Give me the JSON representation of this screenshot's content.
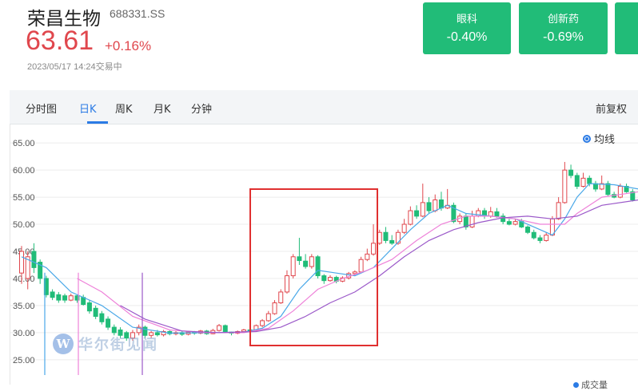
{
  "stock": {
    "name": "荣昌生物",
    "code": "688331.SS",
    "price": "63.61",
    "change_pct": "+0.16%",
    "timestamp": "2023/05/17 14:24交易中"
  },
  "sectors": [
    {
      "name": "眼科",
      "change": "-0.40%"
    },
    {
      "name": "创新药",
      "change": "-0.69%"
    }
  ],
  "tabs": [
    "分时图",
    "日K",
    "周K",
    "月K",
    "分钟"
  ],
  "active_tab": "日K",
  "adjust_label": "前复权",
  "legend_label": "均线",
  "watermark": "华尔街见闻",
  "volume_label": "成交量",
  "colors": {
    "up": "#e0474d",
    "down": "#21bc78",
    "ma5": "#4aa8e8",
    "ma10": "#ee82d9",
    "ma20": "#9b59c9",
    "highlight": "#e03030"
  },
  "chart_data": {
    "type": "candlestick",
    "y_ticks": [
      "65.00",
      "60.00",
      "55.00",
      "50.00",
      "45.00",
      "40.00",
      "35.00",
      "30.00",
      "25.00"
    ],
    "ylim": [
      23.5,
      66.5
    ],
    "candles": [
      [
        41,
        45,
        39,
        46
      ],
      [
        40,
        44,
        38,
        45
      ],
      [
        45,
        42,
        41,
        46.5
      ],
      [
        43,
        40,
        39,
        43.5
      ],
      [
        40,
        37,
        36.5,
        40.5
      ],
      [
        37.5,
        36.5,
        36,
        38
      ],
      [
        37,
        36,
        35.5,
        37.5
      ],
      [
        36.8,
        36,
        35.5,
        37.2
      ],
      [
        36,
        36.8,
        35.8,
        37.2
      ],
      [
        36.8,
        36,
        35.5,
        37
      ],
      [
        36.5,
        35.2,
        35,
        37
      ],
      [
        35.5,
        34,
        33.5,
        36
      ],
      [
        34.5,
        33,
        32.5,
        35
      ],
      [
        33.5,
        32,
        31.5,
        34
      ],
      [
        32.5,
        31,
        30.5,
        33
      ],
      [
        31,
        30,
        29.5,
        31.5
      ],
      [
        30.5,
        29.5,
        29,
        31
      ],
      [
        30,
        29,
        28.5,
        30.3
      ],
      [
        29,
        30,
        28.5,
        30.5
      ],
      [
        30,
        31,
        29.5,
        31.5
      ],
      [
        31,
        29.5,
        29,
        31.3
      ],
      [
        29.5,
        30,
        29,
        30.3
      ],
      [
        30,
        29.6,
        29.3,
        30.5
      ],
      [
        29.6,
        30.2,
        29.3,
        30.5
      ],
      [
        30.2,
        29.8,
        29.5,
        30.4
      ],
      [
        29.8,
        30,
        29.5,
        30.3
      ],
      [
        30,
        29.7,
        29.4,
        30.2
      ],
      [
        29.7,
        30.1,
        29.5,
        30.3
      ],
      [
        30.1,
        29.9,
        29.6,
        30.3
      ],
      [
        29.9,
        30.3,
        29.7,
        30.5
      ],
      [
        30.3,
        29.8,
        29.6,
        30.5
      ],
      [
        29.8,
        30.4,
        29.7,
        30.7
      ],
      [
        30.4,
        31.3,
        30.2,
        31.6
      ],
      [
        31.3,
        30.1,
        29.9,
        31.5
      ],
      [
        30.1,
        29.9,
        29.5,
        30.2
      ],
      [
        29.9,
        30.2,
        29.7,
        30.4
      ],
      [
        30.2,
        30.5,
        30.1,
        30.7
      ],
      [
        30.5,
        30.3,
        30.1,
        30.7
      ],
      [
        30.3,
        31.3,
        30.2,
        31.5
      ],
      [
        31.3,
        32.2,
        31,
        32.5
      ],
      [
        32.2,
        33.5,
        32,
        34
      ],
      [
        33.5,
        35.5,
        33.3,
        36
      ],
      [
        35.5,
        37.5,
        35.3,
        38
      ],
      [
        37.5,
        40.5,
        37.2,
        41.5
      ],
      [
        40.5,
        44,
        40,
        44.5
      ],
      [
        44,
        43.3,
        42.5,
        47.5
      ],
      [
        43.2,
        42.2,
        41.8,
        44.5
      ],
      [
        42.2,
        44,
        41.8,
        44.5
      ],
      [
        44,
        40.5,
        40,
        44.3
      ],
      [
        40.5,
        39.6,
        39,
        40.8
      ],
      [
        39.6,
        40.2,
        39.4,
        40.6
      ],
      [
        40.2,
        39.5,
        39.1,
        40.5
      ],
      [
        39.5,
        40.1,
        39.3,
        40.4
      ],
      [
        40.1,
        40.9,
        39.8,
        41.2
      ],
      [
        40.9,
        41.2,
        40.5,
        41.5
      ],
      [
        41.2,
        43.5,
        41,
        44
      ],
      [
        43.5,
        44.5,
        43.2,
        45.5
      ],
      [
        44.5,
        46.5,
        44.2,
        50
      ],
      [
        46.5,
        48.5,
        46.2,
        49
      ],
      [
        48.5,
        47,
        46.5,
        49.5
      ],
      [
        47,
        46.5,
        46.2,
        48
      ],
      [
        46.5,
        48.5,
        46.2,
        49
      ],
      [
        48.5,
        50,
        48.2,
        51
      ],
      [
        50,
        52.5,
        49.8,
        53.3
      ],
      [
        52.5,
        51.5,
        51,
        53.5
      ],
      [
        51.5,
        54,
        51.3,
        57.5
      ],
      [
        54,
        52.5,
        52,
        55
      ],
      [
        52.5,
        54.5,
        52.2,
        55.5
      ],
      [
        54.5,
        53,
        52.5,
        56
      ],
      [
        53,
        53.5,
        52.8,
        56.5
      ],
      [
        53.5,
        50.5,
        50.2,
        54
      ],
      [
        50.5,
        51.5,
        50,
        52
      ],
      [
        51.5,
        49.5,
        49,
        52
      ],
      [
        49.5,
        51.5,
        49.3,
        52.5
      ],
      [
        51.5,
        52.5,
        51.3,
        53
      ],
      [
        52.5,
        51.5,
        51,
        53
      ],
      [
        51.5,
        52.3,
        51.2,
        53.2
      ],
      [
        52.3,
        51.5,
        51.2,
        53
      ],
      [
        51.5,
        50.5,
        50,
        52
      ],
      [
        50.5,
        50,
        49.8,
        51
      ],
      [
        50,
        50.5,
        49.8,
        51
      ],
      [
        50.5,
        49.5,
        49.3,
        51
      ],
      [
        49.5,
        48.5,
        48.2,
        49.8
      ],
      [
        48.5,
        47.5,
        47.2,
        49
      ],
      [
        47.5,
        47,
        46.5,
        48
      ],
      [
        47,
        48,
        46.8,
        48.5
      ],
      [
        48,
        51,
        47.8,
        51.5
      ],
      [
        51,
        54,
        50.8,
        55
      ],
      [
        54,
        60,
        53.8,
        61.5
      ],
      [
        60,
        59,
        58.5,
        61
      ],
      [
        59,
        57,
        56.5,
        59.5
      ],
      [
        57,
        58.5,
        56.8,
        59.5
      ],
      [
        58.5,
        57.5,
        57,
        59
      ],
      [
        57.5,
        56.5,
        56,
        58
      ],
      [
        56.5,
        57.5,
        56.3,
        59
      ],
      [
        57.5,
        55.5,
        55.2,
        58
      ],
      [
        55.5,
        55,
        54.8,
        56
      ],
      [
        55,
        57,
        54.8,
        57.5
      ],
      [
        57,
        56,
        55.8,
        57.5
      ],
      [
        56,
        54.5,
        54.2,
        56.5
      ]
    ],
    "moving_averages": [
      {
        "name": "MA5",
        "points": [
          [
            0,
            44
          ],
          [
            4,
            42
          ],
          [
            8,
            37.5
          ],
          [
            13,
            35
          ],
          [
            18,
            31
          ],
          [
            24,
            29.9
          ],
          [
            30,
            30
          ],
          [
            36,
            30.1
          ],
          [
            39,
            30.8
          ],
          [
            42,
            33
          ],
          [
            45,
            38
          ],
          [
            48,
            41.5
          ],
          [
            51,
            41
          ],
          [
            54,
            40.5
          ],
          [
            57,
            42
          ],
          [
            60,
            45.5
          ],
          [
            63,
            49
          ],
          [
            66,
            52
          ],
          [
            69,
            53.5
          ],
          [
            72,
            52
          ],
          [
            76,
            51.5
          ],
          [
            80,
            51
          ],
          [
            84,
            49
          ],
          [
            86,
            48
          ],
          [
            88,
            51
          ],
          [
            90,
            55
          ],
          [
            92,
            57.5
          ],
          [
            96,
            57.3
          ],
          [
            100,
            56.5
          ]
        ]
      },
      {
        "name": "MA10",
        "points": [
          [
            9,
            40
          ],
          [
            13,
            37.5
          ],
          [
            18,
            33
          ],
          [
            24,
            30.5
          ],
          [
            30,
            30
          ],
          [
            36,
            30
          ],
          [
            40,
            30.8
          ],
          [
            44,
            34
          ],
          [
            48,
            38
          ],
          [
            52,
            40
          ],
          [
            56,
            41.5
          ],
          [
            60,
            43.5
          ],
          [
            64,
            47
          ],
          [
            68,
            50
          ],
          [
            72,
            51.5
          ],
          [
            76,
            51.5
          ],
          [
            80,
            51
          ],
          [
            84,
            50
          ],
          [
            88,
            50
          ],
          [
            90,
            52
          ],
          [
            94,
            55
          ],
          [
            100,
            56
          ]
        ]
      },
      {
        "name": "MA20",
        "points": [
          [
            16,
            35
          ],
          [
            20,
            32.5
          ],
          [
            26,
            30.3
          ],
          [
            32,
            30
          ],
          [
            38,
            30.2
          ],
          [
            42,
            31
          ],
          [
            46,
            33
          ],
          [
            50,
            35.5
          ],
          [
            54,
            37.5
          ],
          [
            58,
            40.5
          ],
          [
            62,
            44
          ],
          [
            66,
            47
          ],
          [
            70,
            49
          ],
          [
            74,
            50.3
          ],
          [
            78,
            51.2
          ],
          [
            82,
            51.5
          ],
          [
            86,
            51
          ],
          [
            90,
            51.5
          ],
          [
            94,
            53.5
          ],
          [
            100,
            54.5
          ]
        ]
      }
    ]
  }
}
